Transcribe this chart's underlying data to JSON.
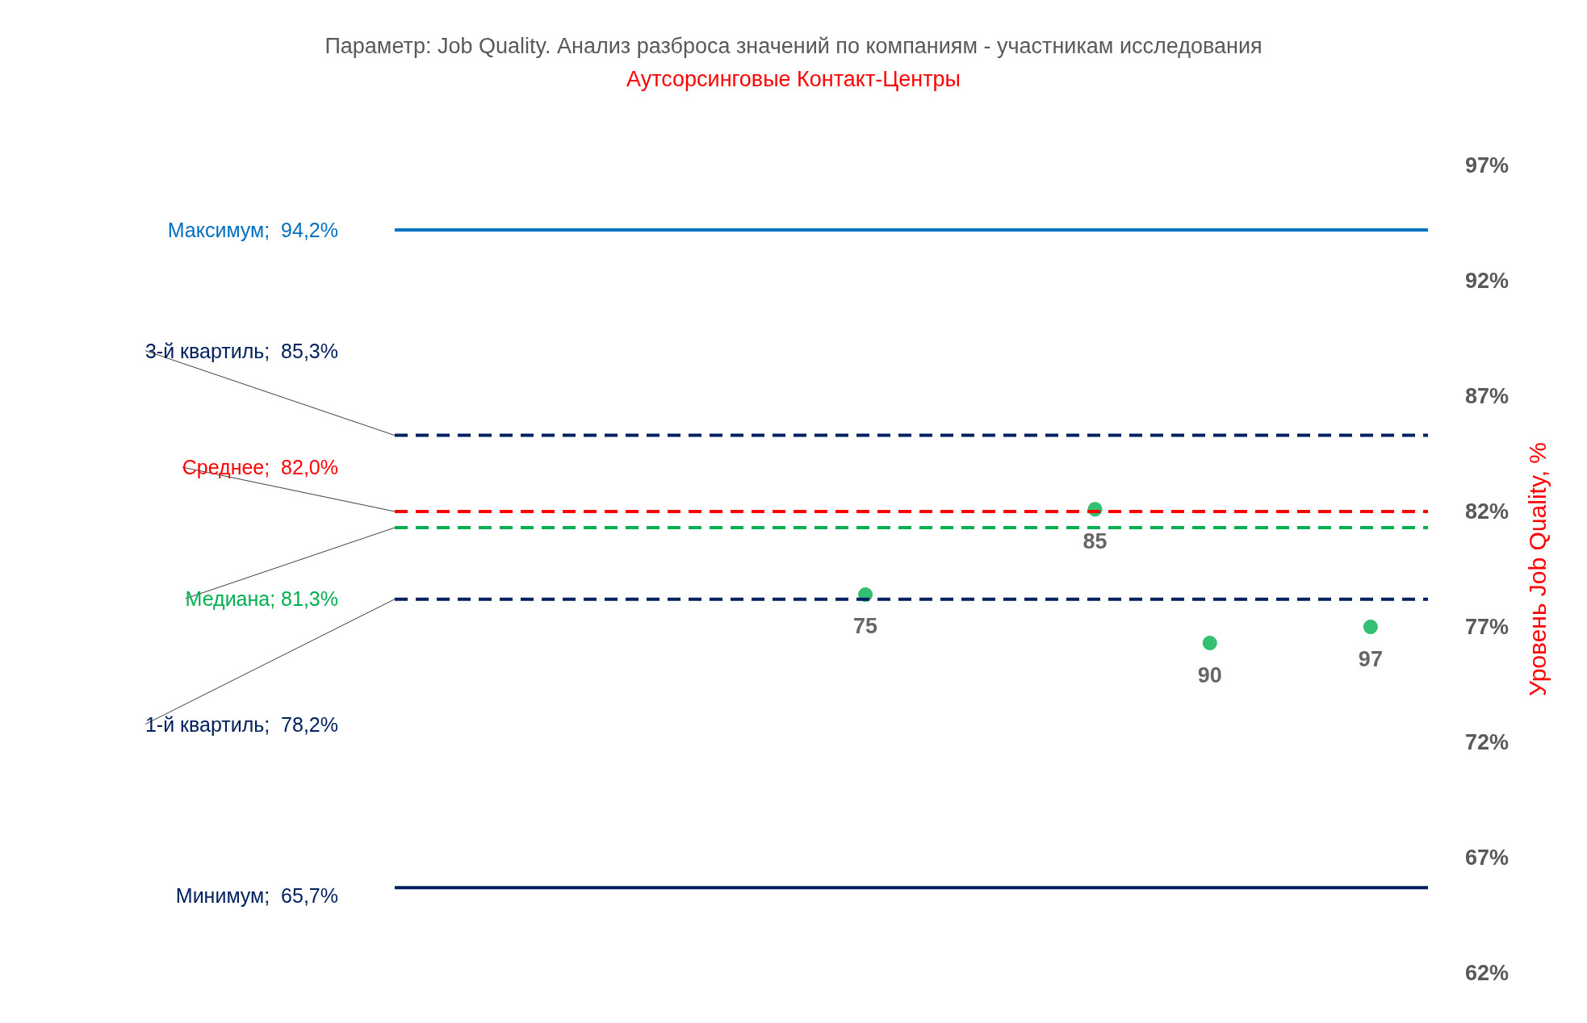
{
  "chart_data": {
    "type": "scatter",
    "title": "Параметр: Job Quality. Анализ разброса значений по компаниям - участникам исследования",
    "subtitle": "Аутсорсинговые Контакт-Центры",
    "ylabel": "Уровень Job Quality, %",
    "categories": [
      null,
      null,
      null,
      null,
      null,
      null,
      null,
      null,
      null,
      null,
      null,
      null,
      null,
      null,
      null,
      null,
      null,
      null,
      null,
      null,
      null,
      null,
      null,
      null,
      null,
      null,
      null,
      null,
      null,
      null,
      null,
      null,
      null,
      null,
      null,
      null,
      null,
      null,
      null,
      null,
      null,
      null,
      null,
      null,
      null
    ],
    "ylim": [
      62,
      97
    ],
    "yticks": [
      {
        "value": 62,
        "label": "62%"
      },
      {
        "value": 67,
        "label": "67%"
      },
      {
        "value": 72,
        "label": "72%"
      },
      {
        "value": 77,
        "label": "77%"
      },
      {
        "value": 82,
        "label": "82%"
      },
      {
        "value": 87,
        "label": "87%"
      },
      {
        "value": 92,
        "label": "92%"
      },
      {
        "value": 97,
        "label": "97%"
      }
    ],
    "tick_labels": "y",
    "ref_lines": [
      {
        "axis": "y",
        "value": 94.2,
        "label": "Максимум;  94,2%",
        "color": "#0070c0",
        "line_style": "solid"
      },
      {
        "axis": "y",
        "value": 85.3,
        "label": "3-й квартиль;  85,3%",
        "color": "#002060",
        "line_style": "dashed"
      },
      {
        "axis": "y",
        "value": 82.0,
        "label": "Среднее;  82,0%",
        "color": "#ff0000",
        "line_style": "dashed"
      },
      {
        "axis": "y",
        "value": 81.3,
        "label": "Медиана; 81,3%",
        "color": "#00b050",
        "line_style": "dashed"
      },
      {
        "axis": "y",
        "value": 78.2,
        "label": "1-й квартиль;  78,2%",
        "color": "#002060",
        "line_style": "dashed"
      },
      {
        "axis": "y",
        "value": 65.7,
        "label": "Минимум;  65,7%",
        "color": "#002060",
        "line_style": "solid"
      }
    ],
    "series": [
      {
        "color": "#00b050",
        "marker": "circle",
        "values": [
          null,
          null,
          null,
          null,
          null,
          null,
          null,
          null,
          null,
          null,
          null,
          null,
          null,
          null,
          null,
          null,
          null,
          null,
          null,
          null,
          78.4,
          null,
          null,
          null,
          null,
          null,
          null,
          null,
          null,
          null,
          82.1,
          null,
          null,
          null,
          null,
          76.3,
          null,
          null,
          null,
          null,
          null,
          null,
          77.0,
          null,
          null
        ]
      }
    ],
    "annotations": [
      "75",
      "85",
      "90",
      "97"
    ]
  }
}
